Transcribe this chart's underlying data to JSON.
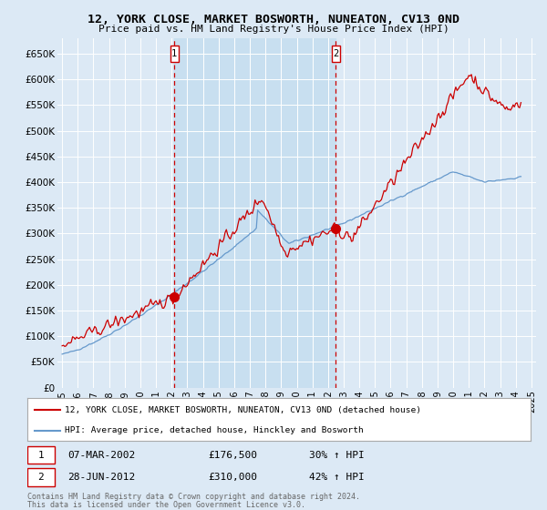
{
  "title": "12, YORK CLOSE, MARKET BOSWORTH, NUNEATON, CV13 0ND",
  "subtitle": "Price paid vs. HM Land Registry's House Price Index (HPI)",
  "ylabel_ticks": [
    "£0",
    "£50K",
    "£100K",
    "£150K",
    "£200K",
    "£250K",
    "£300K",
    "£350K",
    "£400K",
    "£450K",
    "£500K",
    "£550K",
    "£600K",
    "£650K"
  ],
  "ylim": [
    0,
    680000
  ],
  "yticks": [
    0,
    50000,
    100000,
    150000,
    200000,
    250000,
    300000,
    350000,
    400000,
    450000,
    500000,
    550000,
    600000,
    650000
  ],
  "sale1_date_label": "07-MAR-2002",
  "sale1_price": 176500,
  "sale1_pct": "30% ↑ HPI",
  "sale1_x": 2002.18,
  "sale2_date_label": "28-JUN-2012",
  "sale2_price": 310000,
  "sale2_pct": "42% ↑ HPI",
  "sale2_x": 2012.49,
  "legend_line1": "12, YORK CLOSE, MARKET BOSWORTH, NUNEATON, CV13 0ND (detached house)",
  "legend_line2": "HPI: Average price, detached house, Hinckley and Bosworth",
  "footnote1": "Contains HM Land Registry data © Crown copyright and database right 2024.",
  "footnote2": "This data is licensed under the Open Government Licence v3.0.",
  "background_color": "#dce9f5",
  "plot_bg_color": "#dce9f5",
  "shade_color": "#c8dff0",
  "red_color": "#cc0000",
  "blue_color": "#6699cc",
  "vline_color": "#cc0000",
  "xlim": [
    1994.7,
    2025.3
  ],
  "xticks": [
    1995,
    1996,
    1997,
    1998,
    1999,
    2000,
    2001,
    2002,
    2003,
    2004,
    2005,
    2006,
    2007,
    2008,
    2009,
    2010,
    2011,
    2012,
    2013,
    2014,
    2015,
    2016,
    2017,
    2018,
    2019,
    2020,
    2021,
    2022,
    2023,
    2024,
    2025
  ]
}
